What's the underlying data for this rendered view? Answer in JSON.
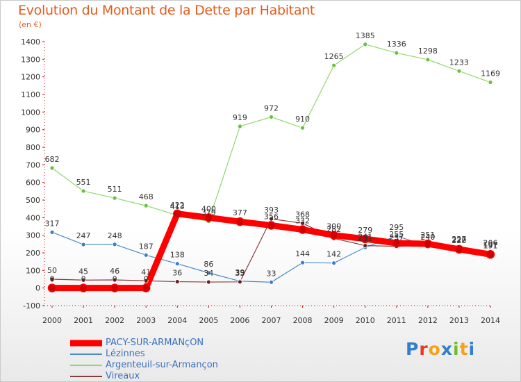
{
  "title": "Evolution du Montant de la Dette par Habitant",
  "unit_label": "(en €)",
  "logo": {
    "text": "Proxiti",
    "colors": [
      "#2f7fd0",
      "#e53a2a",
      "#f2a31b",
      "#2f7fd0",
      "#6cbf2c",
      "#f2a31b",
      "#2f7fd0"
    ]
  },
  "chart_data": {
    "type": "line",
    "title": "Evolution du Montant de la Dette par Habitant",
    "ylabel": "(en €)",
    "xlabel": "",
    "x": [
      "2000",
      "2001",
      "2002",
      "2003",
      "2004",
      "2005",
      "2006",
      "2007",
      "2008",
      "2009",
      "2010",
      "2011",
      "2012",
      "2013",
      "2014"
    ],
    "yticks": [
      -100,
      0,
      100,
      200,
      300,
      400,
      500,
      600,
      700,
      800,
      900,
      1000,
      1100,
      1200,
      1300,
      1400
    ],
    "ylim": [
      -100,
      1400
    ],
    "grid": false,
    "legend_position": "bottom-left",
    "series": [
      {
        "name": "PACY-SUR-ARMANçON",
        "color": "#ff0000",
        "marker_color": "#cc0000",
        "emphasis": true,
        "values": [
          0,
          0,
          0,
          0,
          422,
          400,
          377,
          356,
          332,
          300,
          279,
          255,
          251,
          220,
          191
        ],
        "value_labels": [
          "0",
          "0",
          "0",
          "0",
          "422",
          "400",
          "377",
          "356",
          "332",
          "300",
          "279",
          "255",
          "251",
          "220",
          "191"
        ]
      },
      {
        "name": "Lézinnes",
        "color": "#4a8ac8",
        "marker_color": "#3f7fc0",
        "values": [
          317,
          247,
          248,
          187,
          138,
          86,
          39,
          33,
          144,
          142,
          231,
          295,
          240,
          227,
          206
        ],
        "value_labels": [
          "317",
          "247",
          "248",
          "187",
          "138",
          "86",
          "39",
          "33",
          "144",
          "142",
          "231",
          "295",
          "240",
          "227",
          "206"
        ]
      },
      {
        "name": "Argenteuil-sur-Armançon",
        "color": "#8fd86a",
        "marker_color": "#6cbf3c",
        "values": [
          682,
          551,
          511,
          468,
          413,
          379,
          919,
          972,
          910,
          1265,
          1385,
          1336,
          1298,
          1233,
          1169
        ],
        "value_labels": [
          "682",
          "551",
          "511",
          "468",
          "413",
          "379",
          "919",
          "972",
          "910",
          "1265",
          "1385",
          "1336",
          "1298",
          "1233",
          "1169"
        ]
      },
      {
        "name": "Vireaux",
        "color": "#8a3a3a",
        "marker_color": "#6a1e1e",
        "values": [
          50,
          45,
          46,
          41,
          36,
          34,
          35,
          393,
          368,
          282,
          241,
          237,
          240,
          222,
          197
        ],
        "value_labels": [
          "50",
          "45",
          "46",
          "41",
          "36",
          "34",
          "35",
          "393",
          "368",
          "282",
          "241",
          "237",
          "240",
          "222",
          "197"
        ]
      }
    ]
  }
}
